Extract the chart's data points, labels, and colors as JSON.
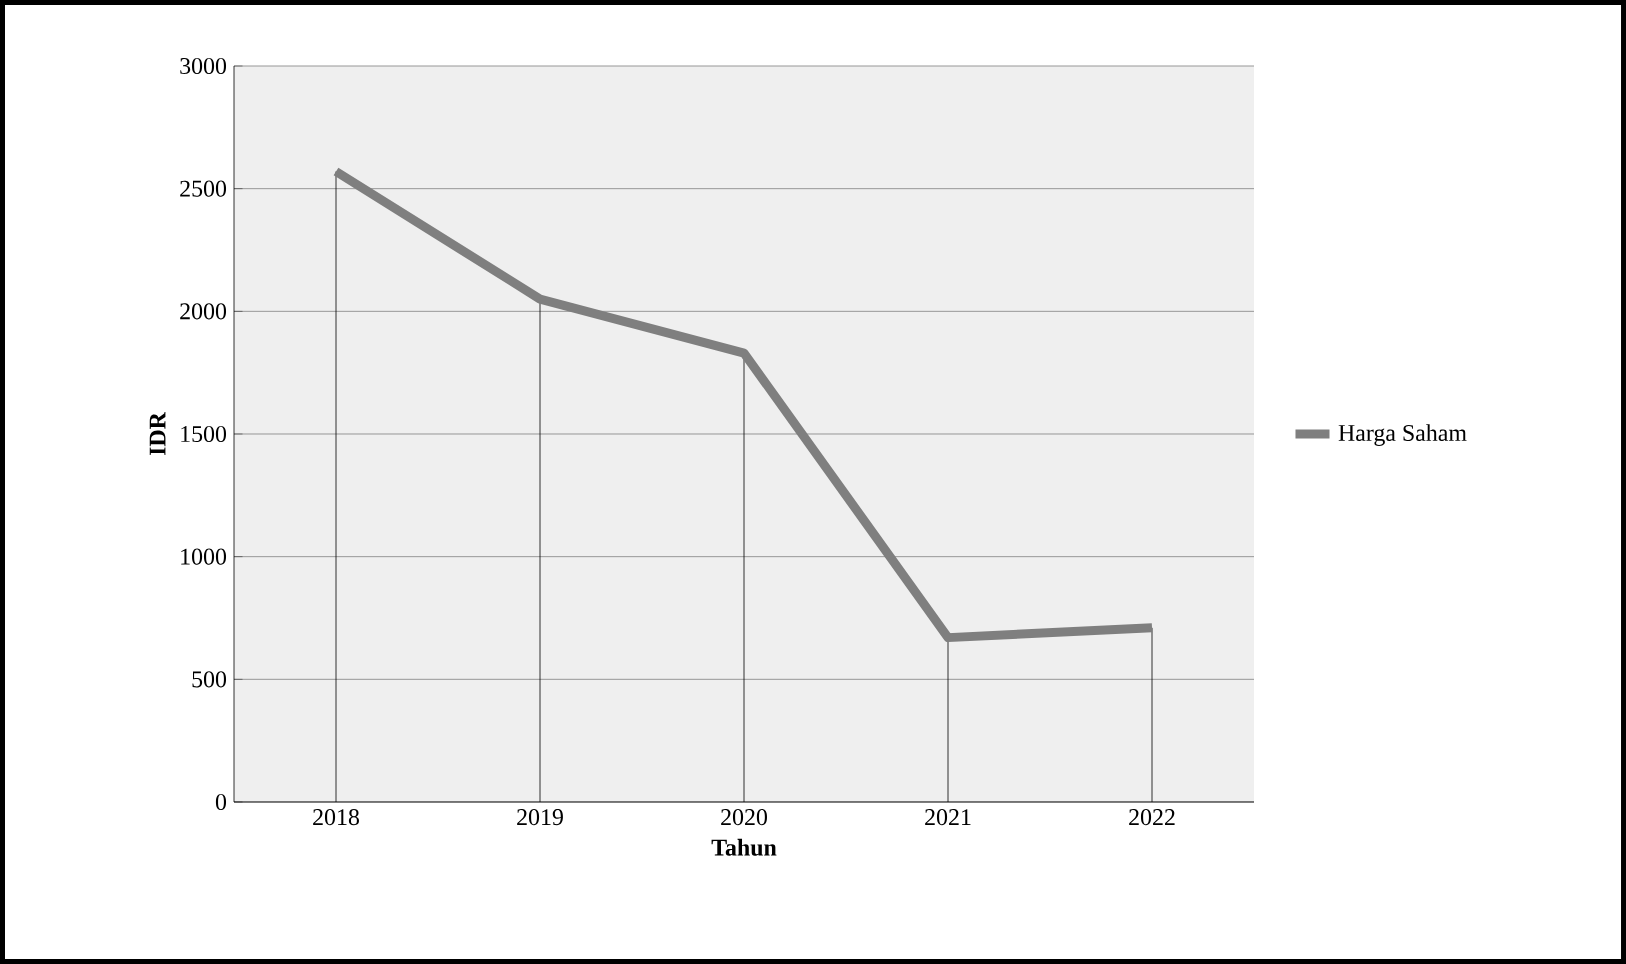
{
  "chart_data": {
    "type": "line",
    "xlabel": "Tahun",
    "ylabel": "IDR",
    "categories": [
      "2018",
      "2019",
      "2020",
      "2021",
      "2022"
    ],
    "series": [
      {
        "name": "Harga Saham",
        "color": "#7f7f7f",
        "values": [
          2570,
          2050,
          1830,
          670,
          710
        ],
        "errors": [
          [
            0,
            2570
          ],
          [
            0,
            2050
          ],
          [
            0,
            1830
          ],
          [
            0,
            670
          ],
          [
            0,
            710
          ]
        ]
      }
    ],
    "ylim": [
      0,
      3000
    ],
    "yticks": [
      0,
      500,
      1000,
      1500,
      2000,
      2500,
      3000
    ],
    "grid": "y",
    "legend": "right",
    "marker": "none",
    "line_style": "solid"
  }
}
